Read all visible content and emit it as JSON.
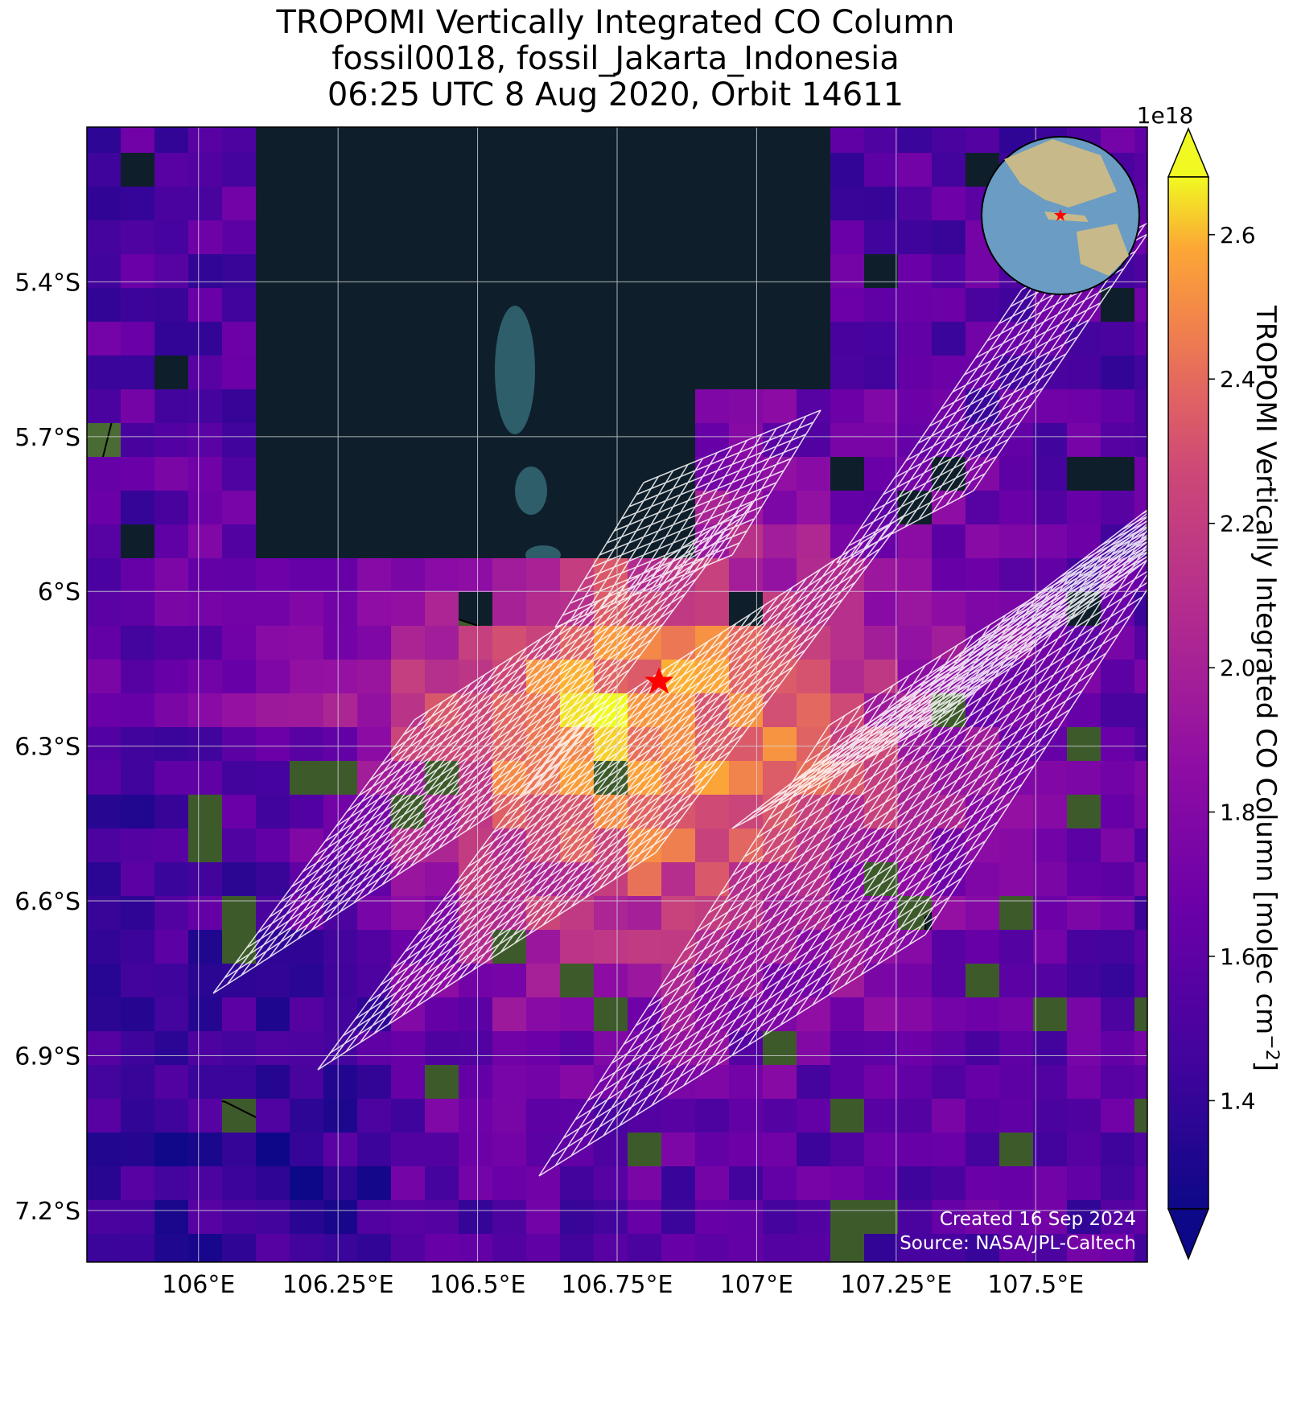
{
  "title": {
    "line1": "TROPOMI Vertically Integrated CO Column",
    "line2": "fossil0018, fossil_Jakarta_Indonesia",
    "line3": "06:25 UTC 8 Aug 2020, Orbit 14611"
  },
  "map": {
    "lon_range": [
      105.8,
      107.7
    ],
    "lat_range": [
      -7.3,
      -5.1
    ],
    "lon_ticks": [
      {
        "value": 106.0,
        "label": "106°E"
      },
      {
        "value": 106.25,
        "label": "106.25°E"
      },
      {
        "value": 106.5,
        "label": "106.5°E"
      },
      {
        "value": 106.75,
        "label": "106.75°E"
      },
      {
        "value": 107.0,
        "label": "107°E"
      },
      {
        "value": 107.25,
        "label": "107.25°E"
      },
      {
        "value": 107.5,
        "label": "107.5°E"
      }
    ],
    "lat_ticks": [
      {
        "value": -5.4,
        "label": "5.4°S"
      },
      {
        "value": -5.7,
        "label": "5.7°S"
      },
      {
        "value": -6.0,
        "label": "6°S"
      },
      {
        "value": -6.3,
        "label": "6.3°S"
      },
      {
        "value": -6.6,
        "label": "6.6°S"
      },
      {
        "value": -6.9,
        "label": "6.9°S"
      },
      {
        "value": -7.2,
        "label": "7.2°S"
      }
    ],
    "grid": true,
    "basemap": "satellite imagery",
    "site_marker": {
      "lon": 106.825,
      "lat": -6.175,
      "symbol": "star",
      "color": "#ff0000"
    },
    "inset": "orthographic globe, site marked with red star",
    "colors": {
      "ocean": "#0e1f2b",
      "land": "#3d5a2b",
      "grid": "#d8d8d8",
      "coast": "#000000",
      "target_grid": "#ffffff"
    }
  },
  "colorbar": {
    "label": "TROPOMI Vertically Integrated CO Column [molec cm",
    "label_exponent": "−2",
    "label_end": "]",
    "scale_label": "1e18",
    "range": [
      1.25,
      2.68
    ],
    "colormap": "plasma",
    "ticks": [
      {
        "value": 1.4,
        "label": "1.4"
      },
      {
        "value": 1.6,
        "label": "1.6"
      },
      {
        "value": 1.8,
        "label": "1.8"
      },
      {
        "value": 2.0,
        "label": "2.0"
      },
      {
        "value": 2.2,
        "label": "2.2"
      },
      {
        "value": 2.4,
        "label": "2.4"
      },
      {
        "value": 2.6,
        "label": "2.6"
      }
    ]
  },
  "credits": {
    "line1": "Created 16 Sep 2024",
    "line2": "Source: NASA/JPL-Caltech"
  }
}
